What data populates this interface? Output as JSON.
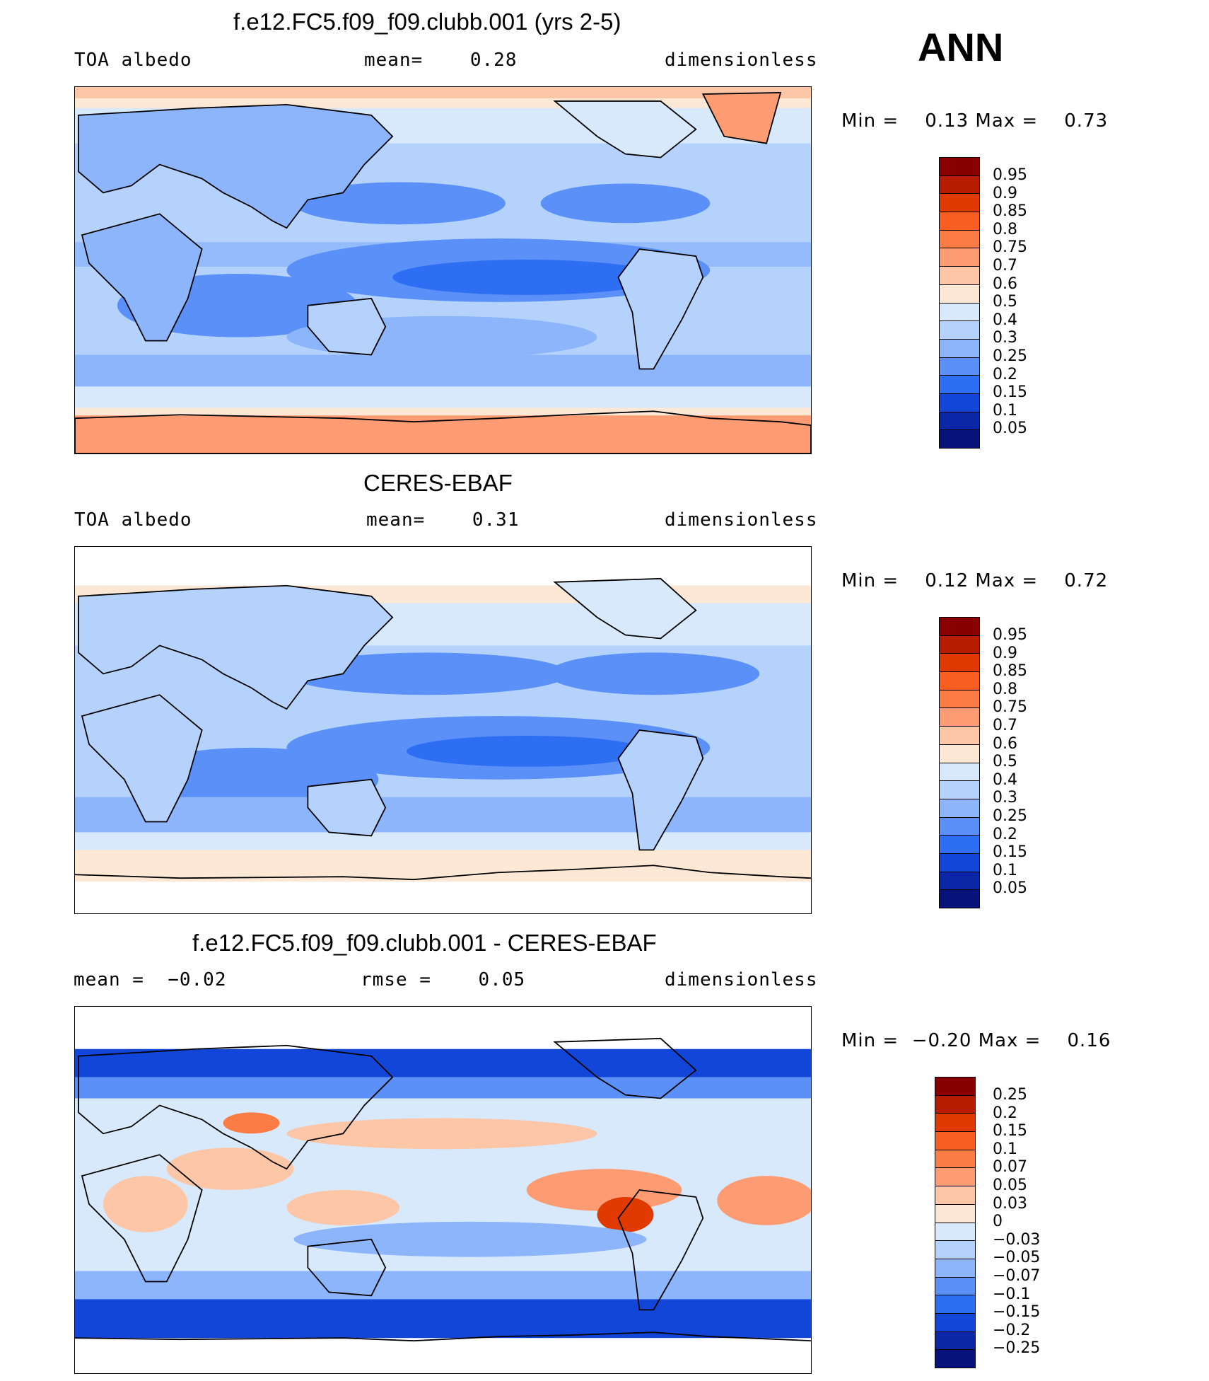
{
  "season": "ANN",
  "panels": [
    {
      "title": "f.e12.FC5.f09_f09.clubb.001 (yrs 2-5)",
      "left_label": "TOA albedo",
      "center_label": "mean=    0.28",
      "right_label": "dimensionless",
      "min_max": "Min =    0.13 Max =    0.73",
      "colorbar_labels": [
        "0.95",
        "0.9",
        "0.85",
        "0.8",
        "0.75",
        "0.7",
        "0.6",
        "0.5",
        "0.4",
        "0.3",
        "0.25",
        "0.2",
        "0.15",
        "0.1",
        "0.05"
      ],
      "colorbar_colors": [
        "#8a0000",
        "#b51c00",
        "#e03a00",
        "#f85d22",
        "#fd7b44",
        "#fd9c73",
        "#fdc6a6",
        "#fde8d6",
        "#d8e9fc",
        "#b5d2fc",
        "#8cb5fb",
        "#5a90f7",
        "#2e6ef2",
        "#1146d8",
        "#0b27a8",
        "#07127a"
      ]
    },
    {
      "title": "CERES-EBAF",
      "left_label": "TOA albedo",
      "center_label": "mean=    0.31",
      "right_label": "dimensionless",
      "min_max": "Min =    0.12 Max =    0.72",
      "colorbar_labels": [
        "0.95",
        "0.9",
        "0.85",
        "0.8",
        "0.75",
        "0.7",
        "0.6",
        "0.5",
        "0.4",
        "0.3",
        "0.25",
        "0.2",
        "0.15",
        "0.1",
        "0.05"
      ],
      "colorbar_colors": [
        "#8a0000",
        "#b51c00",
        "#e03a00",
        "#f85d22",
        "#fd7b44",
        "#fd9c73",
        "#fdc6a6",
        "#fde8d6",
        "#d8e9fc",
        "#b5d2fc",
        "#8cb5fb",
        "#5a90f7",
        "#2e6ef2",
        "#1146d8",
        "#0b27a8",
        "#07127a"
      ]
    },
    {
      "title": "f.e12.FC5.f09_f09.clubb.001 - CERES-EBAF",
      "left_label": "mean =  −0.02",
      "center_label": "rmse =    0.05",
      "right_label": "dimensionless",
      "min_max": "Min =  −0.20 Max =    0.16",
      "colorbar_labels": [
        "0.25",
        "0.2",
        "0.15",
        "0.1",
        "0.07",
        "0.05",
        "0.03",
        "0",
        "−0.03",
        "−0.05",
        "−0.07",
        "−0.1",
        "−0.15",
        "−0.2",
        "−0.25"
      ],
      "colorbar_colors": [
        "#8a0000",
        "#b51c00",
        "#e03a00",
        "#f85d22",
        "#fd7b44",
        "#fd9c73",
        "#fdc6a6",
        "#fde8d6",
        "#d8e9fc",
        "#b5d2fc",
        "#8cb5fb",
        "#5a90f7",
        "#2e6ef2",
        "#1146d8",
        "#0b27a8",
        "#07127a"
      ]
    }
  ]
}
